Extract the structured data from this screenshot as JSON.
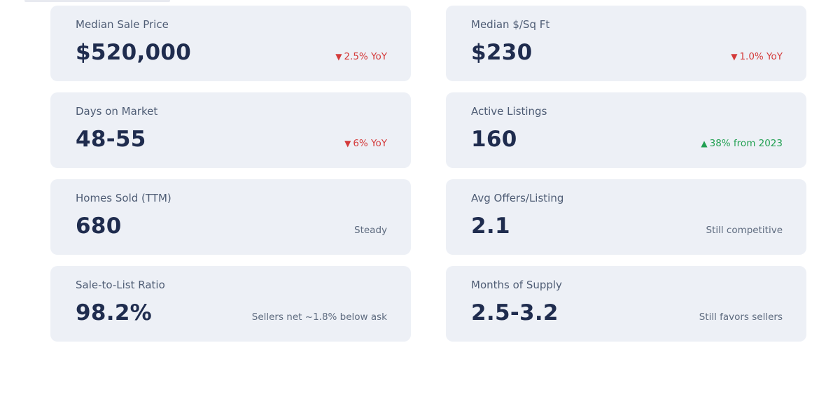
{
  "colors": {
    "page_background": "#ffffff",
    "card_background": "#edf0f6",
    "label_text": "#4e5c74",
    "value_text": "#1f2c4e",
    "trend_down": "#d43a3a",
    "trend_up": "#22a052",
    "note_neutral": "#5e6b7f"
  },
  "cards": [
    {
      "label": "Median Sale Price",
      "value": "$520,000",
      "trend": "down",
      "note_icon": "▼",
      "note_text": "2.5% YoY"
    },
    {
      "label": "Median $/Sq Ft",
      "value": "$230",
      "trend": "down",
      "note_icon": "▼",
      "note_text": "1.0% YoY"
    },
    {
      "label": "Days on Market",
      "value": "48-55",
      "trend": "down",
      "note_icon": "▼",
      "note_text": "6% YoY"
    },
    {
      "label": "Active Listings",
      "value": "160",
      "trend": "up",
      "note_icon": "▲",
      "note_text": "38% from 2023"
    },
    {
      "label": "Homes Sold (TTM)",
      "value": "680",
      "trend": "neutral",
      "note_text": "Steady"
    },
    {
      "label": "Avg Offers/Listing",
      "value": "2.1",
      "trend": "neutral",
      "note_text": "Still competitive"
    },
    {
      "label": "Sale-to-List Ratio",
      "value": "98.2%",
      "trend": "neutral",
      "note_text": "Sellers net ~1.8% below ask"
    },
    {
      "label": "Months of Supply",
      "value": "2.5-3.2",
      "trend": "neutral",
      "note_text": "Still favors sellers"
    }
  ]
}
